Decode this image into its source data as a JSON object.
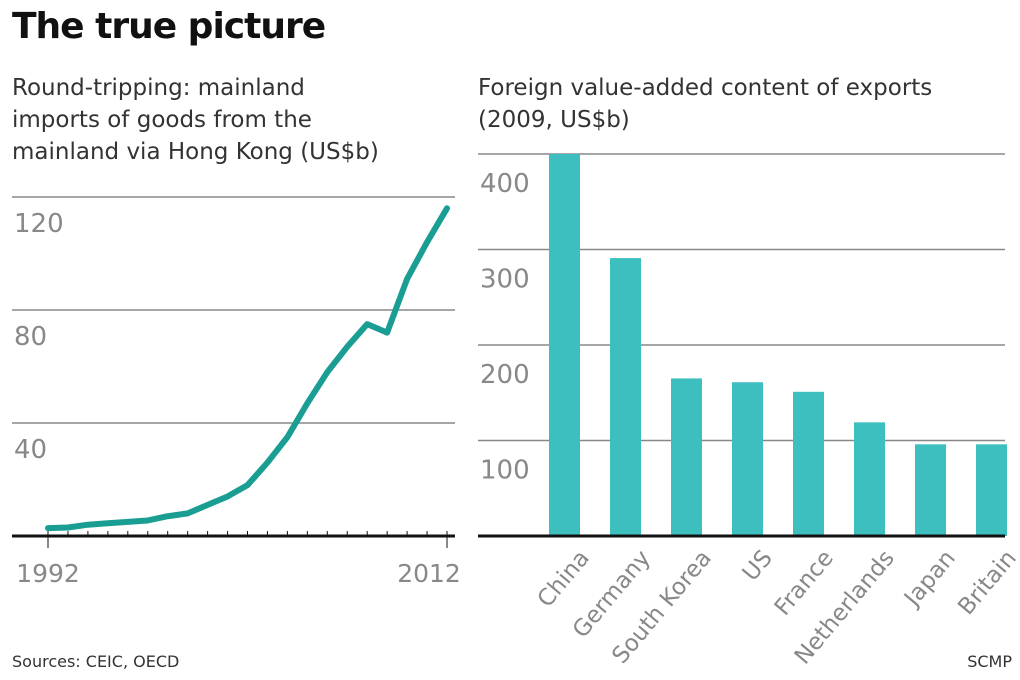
{
  "title": "The true picture",
  "footer": {
    "sources": "Sources: CEIC, OECD",
    "credit": "SCMP"
  },
  "colors": {
    "line": "#1a9e94",
    "bar": "#3dbfbf",
    "grid": "#888888",
    "axis": "#111111",
    "tick_label": "#888888"
  },
  "chart_data": [
    {
      "type": "line",
      "title": "Round-tripping: mainland imports of goods from the mainland via Hong Kong (US$b)",
      "title_lines": [
        "Round-tripping: mainland",
        "imports of goods from the",
        "mainland via Hong Kong (US$b)"
      ],
      "x": [
        1992,
        1993,
        1994,
        1995,
        1996,
        1997,
        1998,
        1999,
        2000,
        2001,
        2002,
        2003,
        2004,
        2005,
        2006,
        2007,
        2008,
        2009,
        2010,
        2011,
        2012
      ],
      "y": [
        2.8,
        3,
        4,
        4.5,
        5,
        5.5,
        7,
        8,
        11,
        14,
        18,
        26,
        35,
        47,
        58,
        67,
        75,
        72,
        91,
        104,
        116
      ],
      "xticks": [
        "1992",
        "2012"
      ],
      "yticks": [
        40,
        80,
        120
      ],
      "ylim": [
        0,
        120
      ],
      "grid": true
    },
    {
      "type": "bar",
      "title": "Foreign value-added content of exports (2009, US$b)",
      "title_lines": [
        "Foreign value-added content of exports",
        "(2009, US$b)"
      ],
      "categories": [
        "China",
        "Germany",
        "South Korea",
        "US",
        "France",
        "Netherlands",
        "Japan",
        "Britain"
      ],
      "values": [
        400,
        291,
        165,
        161,
        151,
        119,
        96,
        96
      ],
      "yticks": [
        100,
        200,
        300,
        400
      ],
      "ylim": [
        0,
        400
      ],
      "grid": true
    }
  ]
}
